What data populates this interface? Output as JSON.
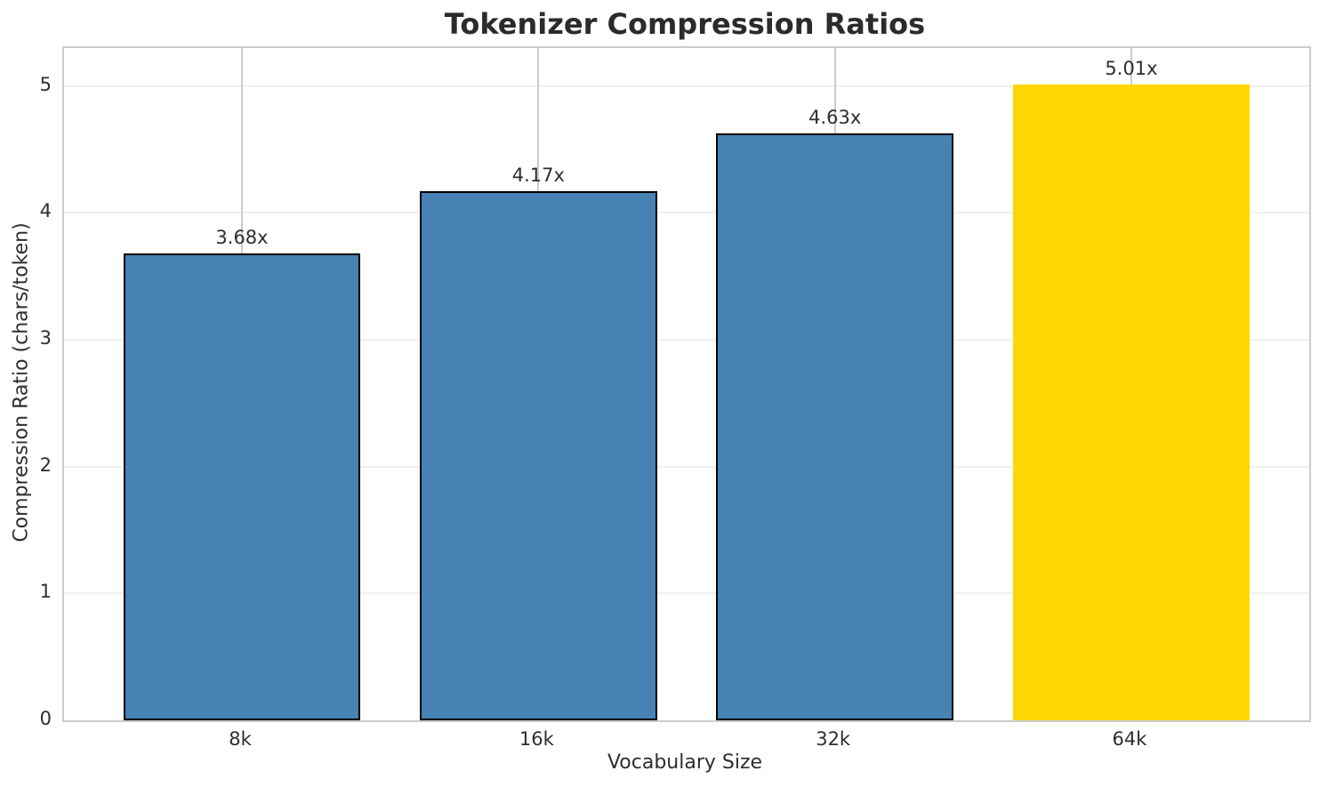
{
  "chart_data": {
    "type": "bar",
    "title": "Tokenizer Compression Ratios",
    "xlabel": "Vocabulary Size",
    "ylabel": "Compression Ratio (chars/token)",
    "categories": [
      "8k",
      "16k",
      "32k",
      "64k"
    ],
    "values": [
      3.68,
      4.17,
      4.63,
      5.01
    ],
    "bar_labels": [
      "3.68x",
      "4.17x",
      "4.63x",
      "5.01x"
    ],
    "yticks": [
      0,
      1,
      2,
      3,
      4,
      5
    ],
    "ylim": [
      0,
      5.3
    ],
    "bar_width_fraction": 0.8,
    "grid": {
      "horizontal": true,
      "vertical": true
    },
    "legend": "none",
    "highlight_index": 3,
    "bar_colors": [
      "#4682b4",
      "#4682b4",
      "#4682b4",
      "#ffd700"
    ],
    "bar_edge_colors": [
      "#000000",
      "#000000",
      "#000000",
      "#ffd700"
    ]
  },
  "colors": {
    "bar_blue": "#4682b4",
    "bar_highlight_gold": "#ffd700",
    "bar_edge_black": "#000000",
    "gridline_horizontal": "#f0f0f0",
    "gridline_vertical": "#cccccc",
    "axis_spine": "#cccccc",
    "text": "#2e2e2e"
  }
}
